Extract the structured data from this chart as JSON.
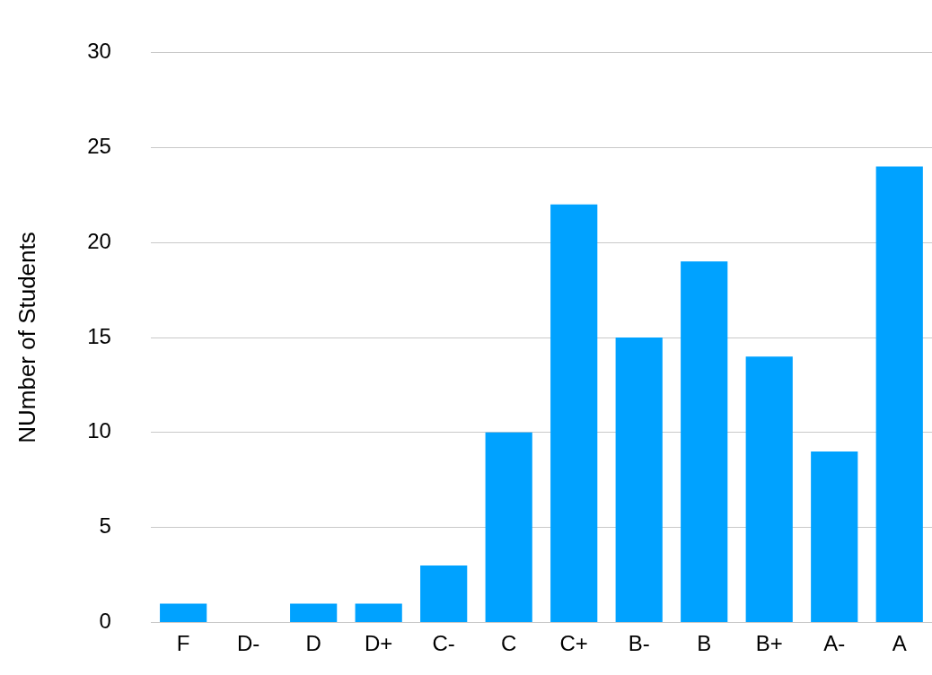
{
  "chart_data": {
    "type": "bar",
    "ylabel": "NUmber of Students",
    "categories": [
      "F",
      "D-",
      "D",
      "D+",
      "C-",
      "C",
      "C+",
      "B-",
      "B",
      "B+",
      "A-",
      "A"
    ],
    "values": [
      1,
      0,
      1,
      1,
      3,
      10,
      22,
      15,
      19,
      14,
      9,
      24
    ],
    "color": "#00a2ff",
    "ylim": [
      0,
      30
    ],
    "yticks": [
      0,
      5,
      10,
      15,
      20,
      25,
      30
    ],
    "grid": "y",
    "legend": false
  }
}
